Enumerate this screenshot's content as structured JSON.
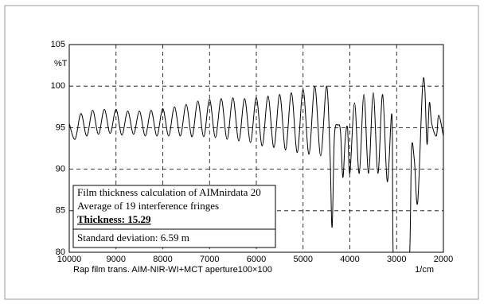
{
  "chart_data": {
    "type": "line",
    "ylabel": "%T",
    "xlabel": "Rap film  trans.  AIM-NIR-WI+MCT  aperture100×100",
    "x_unit": "1/cm",
    "annotations": [
      "Film thickness calculation of AIMnirdata 20",
      "Average of 19 interference fringes",
      "Thickness:  15.29",
      "Standard deviation: 6.59  m"
    ],
    "xlim": [
      10000,
      2000
    ],
    "xticks": [
      10000,
      9000,
      8000,
      7000,
      6000,
      5000,
      4000,
      3000,
      2000
    ],
    "ylim": [
      80,
      105
    ],
    "yticks": [
      80,
      85,
      90,
      95,
      100,
      105
    ],
    "grid": true,
    "color": "#000000",
    "x": [
      10000,
      9875,
      9750,
      9625,
      9500,
      9375,
      9250,
      9125,
      9000,
      8875,
      8750,
      8625,
      8500,
      8375,
      8250,
      8125,
      8000,
      7875,
      7750,
      7625,
      7500,
      7375,
      7250,
      7125,
      7000,
      6875,
      6750,
      6625,
      6500,
      6375,
      6250,
      6125,
      6000,
      5875,
      5750,
      5625,
      5500,
      5375,
      5250,
      5125,
      5000,
      4875,
      4750,
      4625,
      4500,
      4425,
      4380,
      4330,
      4250,
      4200,
      4150,
      4100,
      4050,
      4000,
      3900,
      3800,
      3700,
      3600,
      3500,
      3400,
      3300,
      3200,
      3100,
      3070,
      2950,
      2800,
      2720,
      2680,
      2620,
      2550,
      2450,
      2400,
      2350,
      2300,
      2250,
      2150,
      2100,
      2000
    ],
    "values": [
      95.5,
      93.6,
      96.7,
      94.0,
      97.1,
      94.2,
      97.2,
      94.3,
      97.2,
      94.1,
      97.0,
      94.2,
      97.0,
      94.0,
      97.1,
      94.0,
      97.3,
      94.0,
      97.5,
      94.0,
      97.8,
      93.9,
      98.2,
      93.9,
      98.4,
      93.8,
      98.5,
      93.6,
      98.6,
      93.4,
      98.5,
      93.2,
      98.6,
      92.8,
      98.8,
      92.6,
      99.0,
      92.3,
      99.2,
      92.0,
      99.6,
      91.8,
      100.0,
      91.6,
      100.0,
      92.0,
      83.0,
      94.0,
      95.3,
      94.5,
      89.0,
      93.5,
      95.0,
      89.5,
      98.0,
      89.5,
      99.0,
      89.5,
      99.2,
      89.5,
      99.0,
      88.5,
      96.5,
      79.0,
      76.0,
      76.0,
      80.0,
      92.5,
      91.0,
      86.0,
      99.5,
      100.0,
      93.0,
      98.0,
      95.5,
      94.0,
      96.5,
      94.0
    ]
  }
}
